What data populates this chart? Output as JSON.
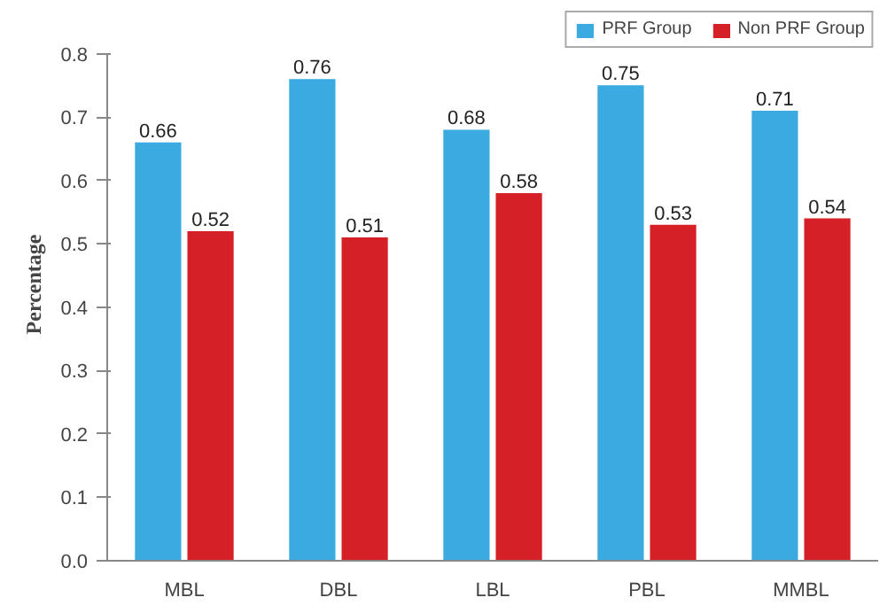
{
  "chart_data": {
    "type": "bar",
    "ylabel": "Percentage",
    "categories": [
      "MBL",
      "DBL",
      "LBL",
      "PBL",
      "MMBL"
    ],
    "series": [
      {
        "name": "PRF Group",
        "color": "#3aaae0",
        "values": [
          0.66,
          0.76,
          0.68,
          0.75,
          0.71
        ]
      },
      {
        "name": "Non PRF Group",
        "color": "#d62027",
        "values": [
          0.52,
          0.51,
          0.58,
          0.53,
          0.54
        ]
      }
    ],
    "ylim": [
      0,
      0.8
    ],
    "yticks": [
      {
        "value": 0,
        "label": "0.0"
      },
      0.1,
      0.2,
      0.3,
      0.4,
      0.5,
      0.6,
      0.7,
      0.8
    ],
    "data_labels": true,
    "grid": false,
    "legend": "top right"
  }
}
